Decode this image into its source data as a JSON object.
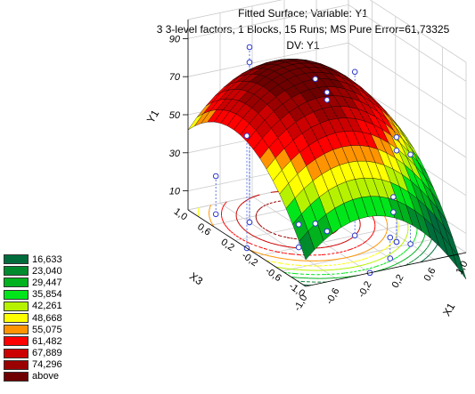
{
  "chart_data": {
    "type": "surface3d",
    "title_lines": [
      "Fitted Surface; Variable: Y1",
      "3 3-level factors, 1 Blocks, 15 Runs; MS Pure Error=61,73325",
      "DV: Y1"
    ],
    "x_axis": {
      "label": "X1",
      "ticks": [
        "-1,0",
        "-0,6",
        "-0,2",
        "0,2",
        "0,6",
        "1,0"
      ],
      "range": [
        -1,
        1
      ]
    },
    "y_axis": {
      "label": "X3",
      "ticks": [
        "-1,0",
        "-0,6",
        "-0,2",
        "0,2",
        "0,6",
        "1,0"
      ],
      "range": [
        -1,
        1
      ]
    },
    "z_axis": {
      "label": "Y1",
      "ticks": [
        "10",
        "30",
        "50",
        "70",
        "90"
      ],
      "range": [
        0,
        100
      ]
    },
    "legend": [
      {
        "label": "16,633",
        "color": "#006c3c"
      },
      {
        "label": "23,040",
        "color": "#008a2e"
      },
      {
        "label": "29,447",
        "color": "#00b21e"
      },
      {
        "label": "35,854",
        "color": "#00e61a"
      },
      {
        "label": "42,261",
        "color": "#b6f200"
      },
      {
        "label": "48,668",
        "color": "#ffff00"
      },
      {
        "label": "55,075",
        "color": "#ff9400"
      },
      {
        "label": "61,482",
        "color": "#ff0000"
      },
      {
        "label": "67,889",
        "color": "#cc0000"
      },
      {
        "label": "74,296",
        "color": "#9a0000"
      },
      {
        "label": "above",
        "color": "#6e0000"
      }
    ],
    "data_points": [
      {
        "x1": -1,
        "x3": 0,
        "y": 59
      },
      {
        "x1": -0.6,
        "x3": 0.5,
        "y": 92
      },
      {
        "x1": -0.6,
        "x3": 0.5,
        "y": 84
      },
      {
        "x1": 0,
        "x3": 0.2,
        "y": 76
      },
      {
        "x1": 0,
        "x3": 0,
        "y": 73
      },
      {
        "x1": 0,
        "x3": 0,
        "y": 69
      },
      {
        "x1": 0.2,
        "x3": -0.2,
        "y": 86
      },
      {
        "x1": 0.5,
        "x3": -0.5,
        "y": 55
      },
      {
        "x1": 0.5,
        "x3": -0.5,
        "y": 48
      },
      {
        "x1": 0.6,
        "x3": -0.6,
        "y": 47
      },
      {
        "x1": -0.5,
        "x3": -0.2,
        "y": 12
      },
      {
        "x1": 0.2,
        "x3": -0.8,
        "y": 11
      },
      {
        "x1": 0.9,
        "x3": 0.1,
        "y": 8
      },
      {
        "x1": -0.2,
        "x3": -1,
        "y": 0
      },
      {
        "x1": -0.8,
        "x3": 0.8,
        "y": 20
      }
    ]
  }
}
